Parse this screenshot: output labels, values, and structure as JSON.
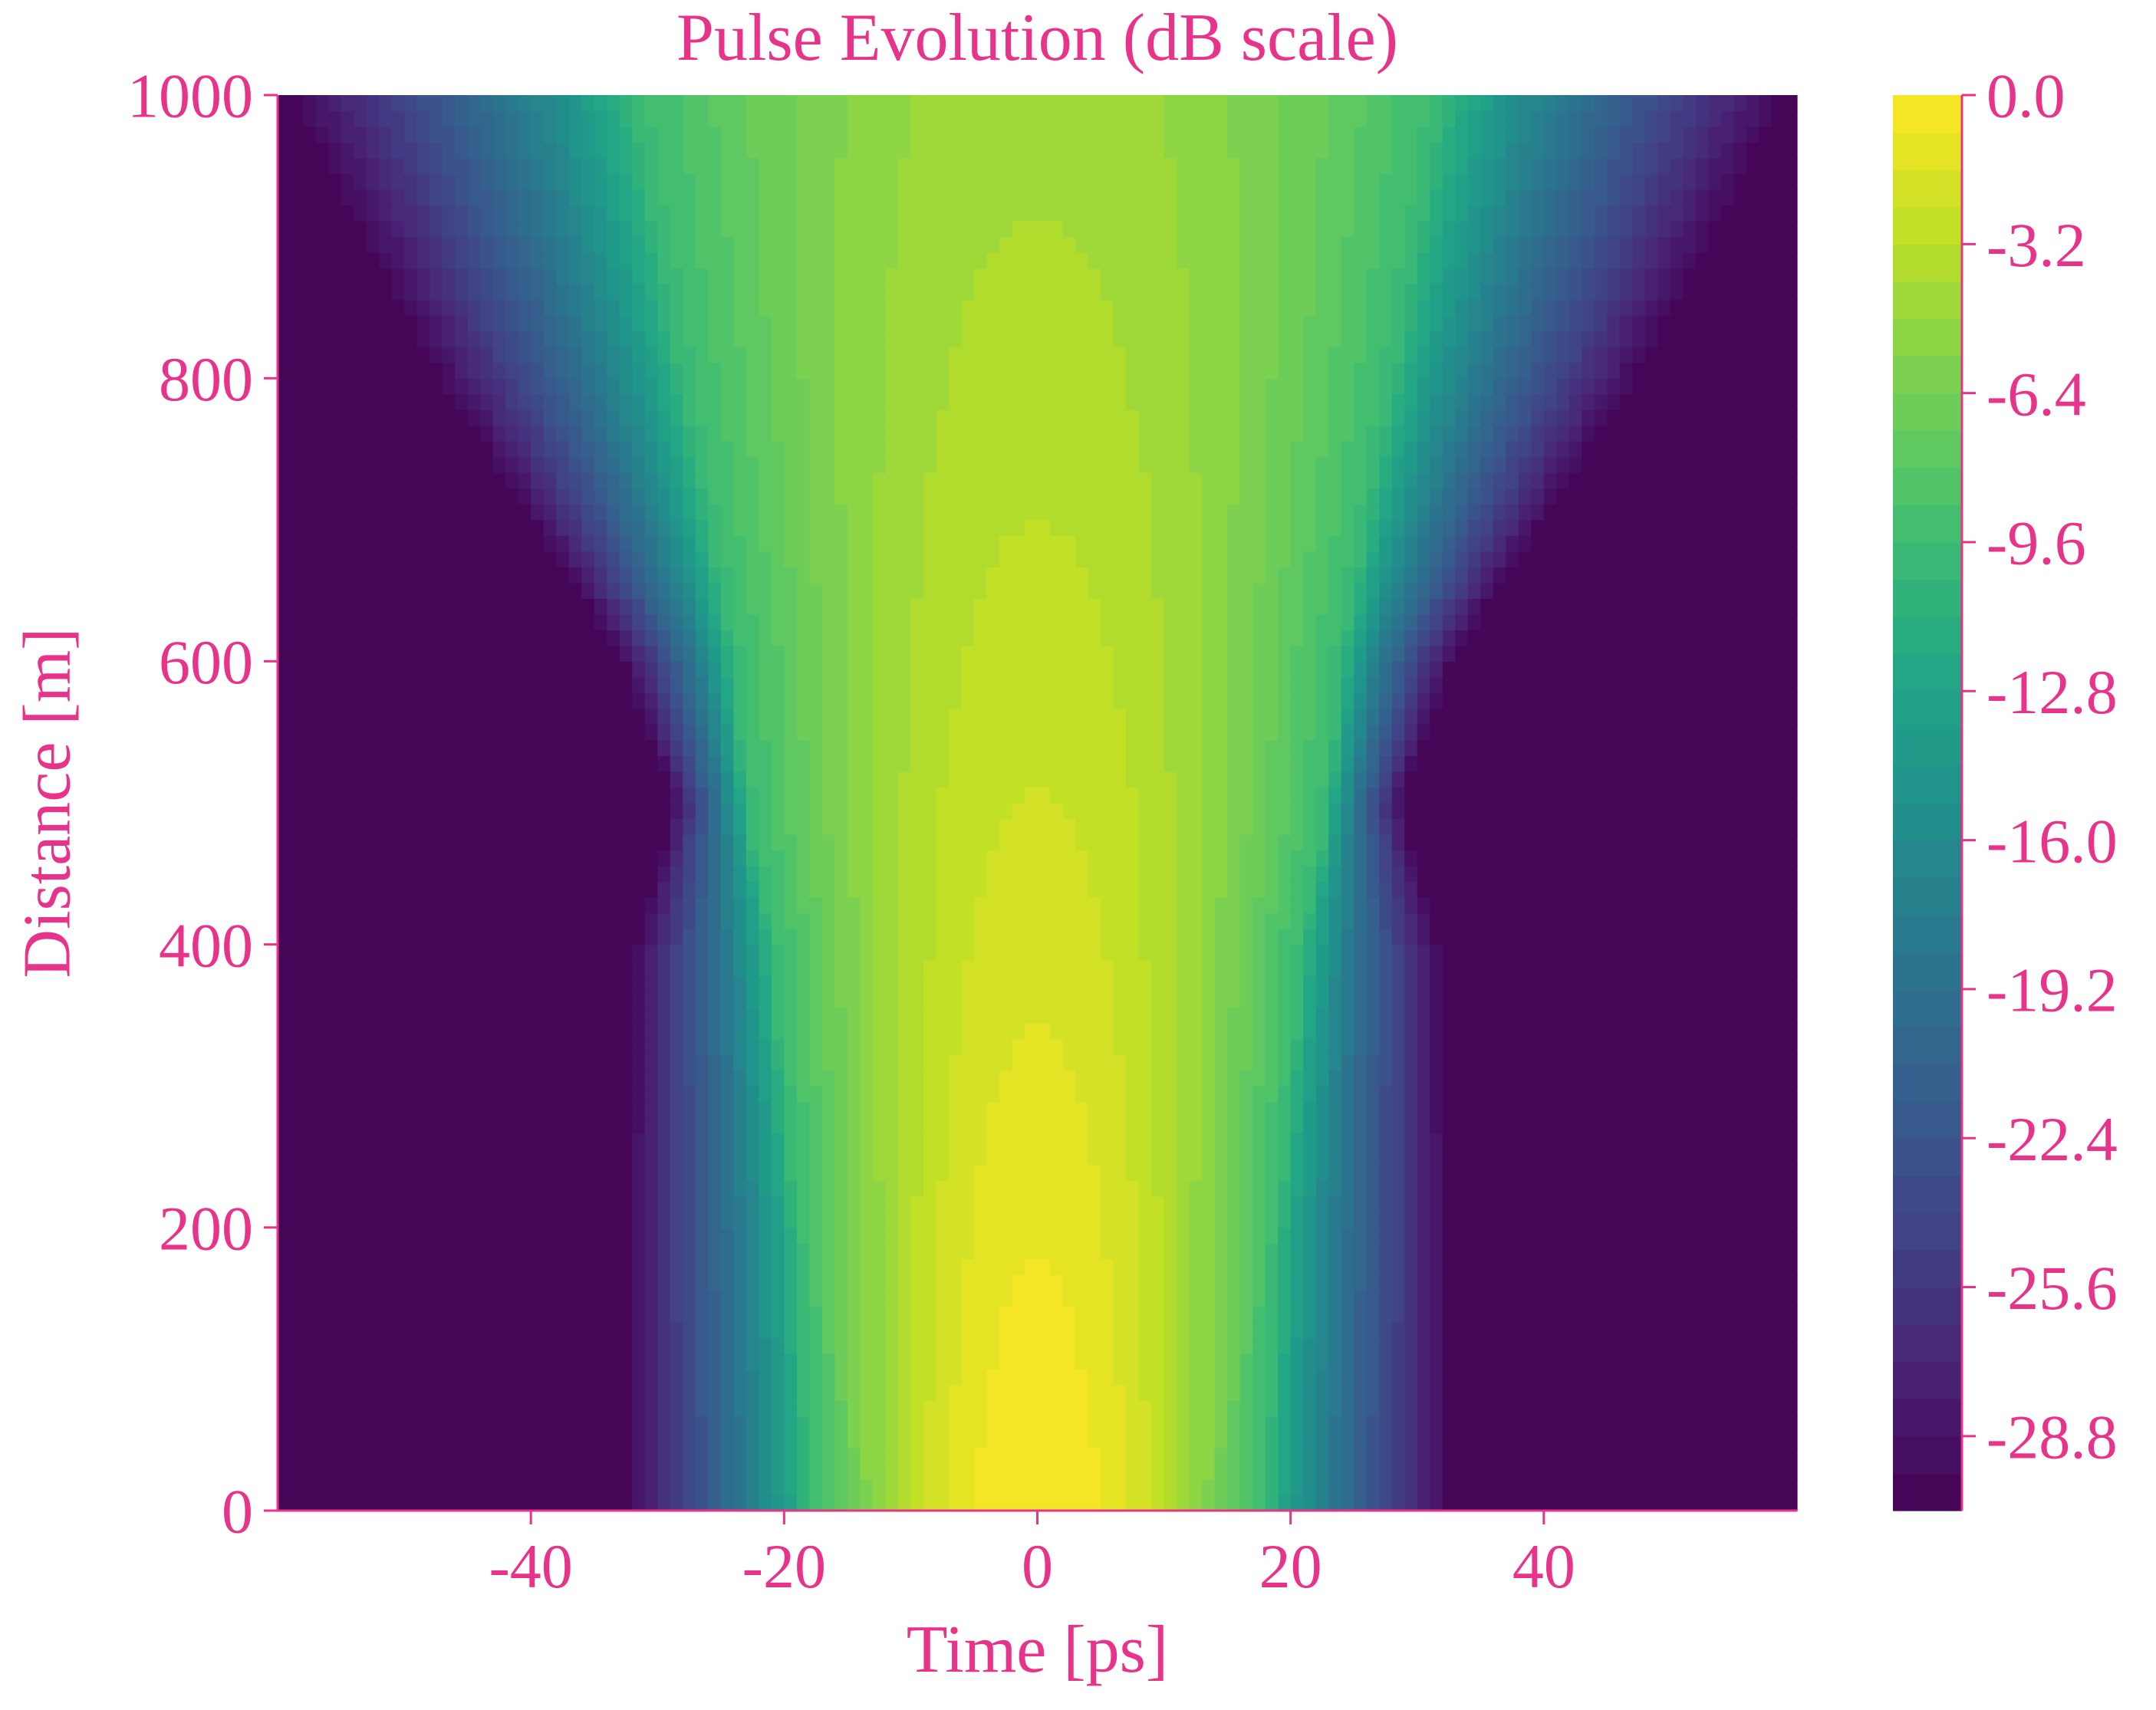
{
  "colors": {
    "text": "#e8338a",
    "axis": "#e8338a",
    "colormap": [
      "#440154",
      "#482475",
      "#414487",
      "#355f8d",
      "#2a788e",
      "#21918c",
      "#22a884",
      "#44bf70",
      "#7ad151",
      "#bddf26",
      "#fde725"
    ]
  },
  "chart_data": {
    "type": "heatmap",
    "title": "Pulse Evolution (dB scale)",
    "xlabel": "Time [ps]",
    "ylabel": "Distance [m]",
    "xlim": [
      -60,
      60
    ],
    "ylim": [
      0,
      1000
    ],
    "xticks": [
      -40,
      -20,
      0,
      20,
      40
    ],
    "yticks": [
      0,
      200,
      400,
      600,
      800,
      1000
    ],
    "colorbar": {
      "range": [
        -30.4,
        0.0
      ],
      "levels": 38,
      "ticks": [
        "0.0",
        "-3.2",
        "-6.4",
        "-9.6",
        "-12.8",
        "-16.0",
        "-19.2",
        "-22.4",
        "-25.6",
        "-28.8"
      ]
    },
    "grid": false,
    "pulse_halfwidth_profile": {
      "distance": [
        0,
        200,
        400,
        500,
        600,
        800,
        1000
      ],
      "edge_at_floor_ps": [
        33,
        33,
        32,
        29,
        33,
        48,
        60
      ],
      "edge_at_minus10dB_ps": [
        18,
        19,
        21,
        23,
        24,
        28,
        32
      ]
    },
    "peak_db_profile": {
      "distance": [
        0,
        200,
        400,
        600,
        800,
        1000
      ],
      "peak_db": [
        0.0,
        -0.9,
        -1.9,
        -2.8,
        -3.6,
        -4.3
      ]
    }
  }
}
